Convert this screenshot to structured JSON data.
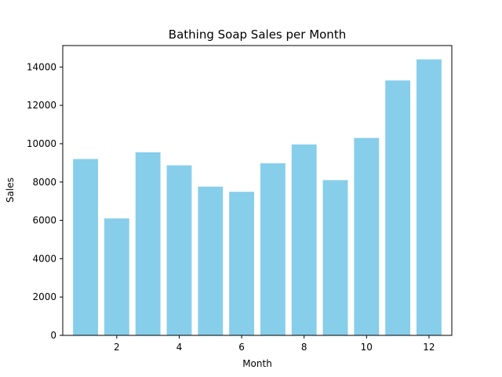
{
  "chart_data": {
    "type": "bar",
    "title": "Bathing Soap Sales per Month",
    "xlabel": "Month",
    "ylabel": "Sales",
    "x": [
      1,
      2,
      3,
      4,
      5,
      6,
      7,
      8,
      9,
      10,
      11,
      12
    ],
    "values": [
      9200,
      6100,
      9550,
      8870,
      7760,
      7490,
      8980,
      9960,
      8100,
      10300,
      13300,
      14400
    ],
    "xlim": [
      0.27,
      12.73
    ],
    "ylim": [
      0,
      15120
    ],
    "xticks": [
      2,
      4,
      6,
      8,
      10,
      12
    ],
    "yticks": [
      0,
      2000,
      4000,
      6000,
      8000,
      10000,
      12000,
      14000
    ],
    "bar_color": "#87ceeb",
    "grid": false
  }
}
